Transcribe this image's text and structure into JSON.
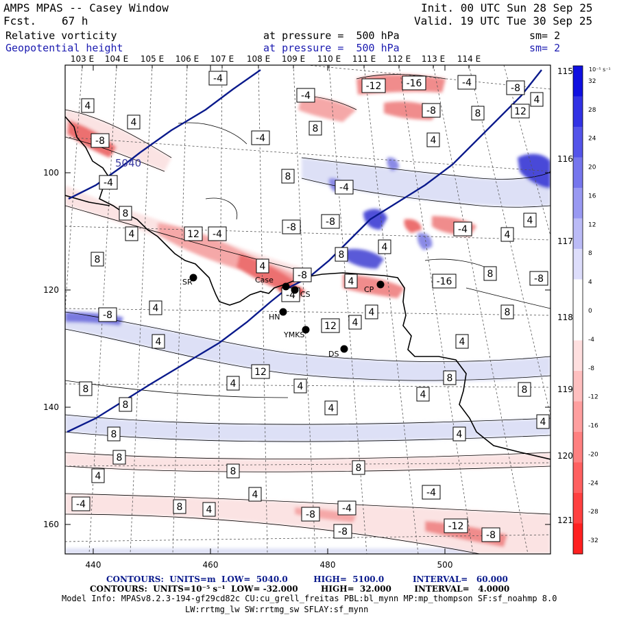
{
  "header": {
    "title": "AMPS MPAS -- Casey Window",
    "forecast_label": "Fcst.",
    "forecast_hours": "67 h",
    "init": "Init. 00 UTC Sun 28 Sep 25",
    "valid": "Valid. 19 UTC Tue 30 Sep 25",
    "field1": "Relative vorticity",
    "field1_pressure": "at pressure =  500 hPa",
    "field1_smooth": "sm= 2",
    "field2": "Geopotential height",
    "field2_pressure": "at pressure =  500 hPa",
    "field2_smooth": "sm= 2"
  },
  "axes": {
    "top_longitudes": [
      "103 E",
      "104 E",
      "105 E",
      "106 E",
      "107 E",
      "108 E",
      "109 E",
      "110 E",
      "111 E",
      "112 E",
      "113 E",
      "114 E"
    ],
    "right_labels": [
      "115 E",
      "116 E",
      "117 E",
      "118 E",
      "119 E",
      "120 E",
      "121 E"
    ],
    "left_ticks": [
      "100",
      "120",
      "140",
      "160"
    ],
    "bottom_ticks": [
      "440",
      "460",
      "480",
      "500"
    ]
  },
  "colorbar": {
    "unit": "10⁻⁵ s⁻¹",
    "labels": [
      "32",
      "28",
      "24",
      "20",
      "16",
      "12",
      "8",
      "4",
      "0",
      "-4",
      "-8",
      "-12",
      "-16",
      "-20",
      "-24",
      "-28",
      "-32"
    ],
    "negative_color": "#ff2020",
    "positive_color": "#1010e0"
  },
  "stations": [
    "SR",
    "Case",
    "CS",
    "HN",
    "YMKS",
    "DS",
    "CP"
  ],
  "height_contour_label": "5040",
  "contour_labels": [
    "-12",
    "-16",
    "-4",
    "-8",
    "-4",
    "-4",
    "4",
    "4",
    "8",
    "12",
    "-8",
    "8",
    "4",
    "-8",
    "-4",
    "4",
    "8",
    "-4",
    "-4",
    "8",
    "-8",
    "4",
    "12",
    "-4",
    "-8",
    "-4",
    "4",
    "4",
    "4",
    "8",
    "-8",
    "4",
    "8",
    "-16",
    "8",
    "-8",
    "4",
    "4",
    "-4",
    "-8",
    "4",
    "12",
    "4",
    "4",
    "8",
    "4",
    "12",
    "8",
    "4",
    "4",
    "8",
    "4",
    "8",
    "4",
    "8",
    "4",
    "8",
    "4",
    "8",
    "8",
    "4",
    "8",
    "-4",
    "4",
    "-4",
    "8",
    "4",
    "-4",
    "-8",
    "-8",
    "-12",
    "-8",
    "4",
    "-4",
    "-12",
    "-16"
  ],
  "footer": {
    "line1": "CONTOURS:  UNITS=m  LOW=  5040.0         HIGH=  5100.0          INTERVAL=   60.000",
    "line2": "CONTOURS:  UNITS=10⁻⁵ s⁻¹  LOW= -32.000        HIGH=  32.000        INTERVAL=   4.0000",
    "line3": "Model Info: MPASv8.2.3-194-gf29cd82c CU:cu_grell_freitas PBL:bl_mynn MP:mp_thompson SF:sf_noahmp 8.0",
    "line4": "LW:rrtmg_lw SW:rrtmg_sw SFLAY:sf_mynn"
  }
}
